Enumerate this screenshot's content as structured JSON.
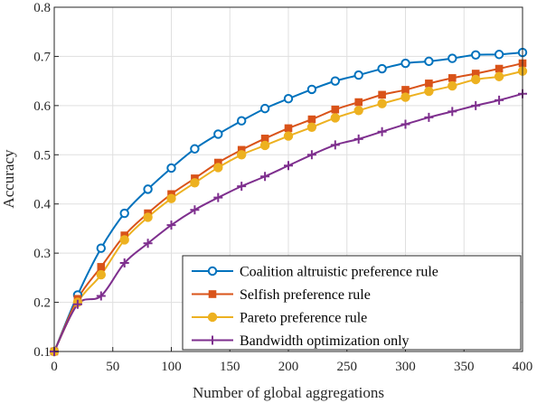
{
  "chart_data": {
    "type": "line",
    "title": "",
    "xlabel": "Number of global aggregations",
    "ylabel": "Accuracy",
    "xlim": [
      0,
      400
    ],
    "ylim": [
      0.1,
      0.8
    ],
    "xticks": [
      0,
      50,
      100,
      150,
      200,
      250,
      300,
      350,
      400
    ],
    "yticks": [
      0.1,
      0.2,
      0.3,
      0.4,
      0.5,
      0.6,
      0.7,
      0.8
    ],
    "grid": true,
    "legend_position": "bottom-right",
    "x": [
      0,
      20,
      40,
      60,
      80,
      100,
      120,
      140,
      160,
      180,
      200,
      220,
      240,
      260,
      280,
      300,
      320,
      340,
      360,
      380,
      400
    ],
    "series": [
      {
        "name": "Coalition altruistic preference rule",
        "color": "#0072BD",
        "marker": "circle",
        "values": [
          0.1,
          0.215,
          0.31,
          0.381,
          0.43,
          0.473,
          0.512,
          0.542,
          0.569,
          0.594,
          0.614,
          0.633,
          0.65,
          0.662,
          0.675,
          0.686,
          0.69,
          0.696,
          0.703,
          0.704,
          0.708
        ]
      },
      {
        "name": "Selfish preference rule",
        "color": "#D95319",
        "marker": "square",
        "values": [
          0.1,
          0.207,
          0.272,
          0.336,
          0.381,
          0.42,
          0.452,
          0.484,
          0.51,
          0.533,
          0.554,
          0.572,
          0.592,
          0.607,
          0.622,
          0.632,
          0.645,
          0.656,
          0.665,
          0.675,
          0.686
        ]
      },
      {
        "name": "Pareto preference rule",
        "color": "#EDB120",
        "marker": "circle",
        "values": [
          0.1,
          0.2,
          0.256,
          0.327,
          0.373,
          0.411,
          0.443,
          0.474,
          0.5,
          0.519,
          0.538,
          0.556,
          0.575,
          0.59,
          0.604,
          0.617,
          0.629,
          0.64,
          0.653,
          0.659,
          0.67
        ]
      },
      {
        "name": "Bandwidth optimization only",
        "color": "#7E2F8E",
        "marker": "plus",
        "values": [
          0.1,
          0.196,
          0.213,
          0.28,
          0.32,
          0.357,
          0.388,
          0.413,
          0.436,
          0.456,
          0.478,
          0.5,
          0.52,
          0.532,
          0.547,
          0.562,
          0.576,
          0.588,
          0.6,
          0.611,
          0.624
        ]
      }
    ]
  }
}
